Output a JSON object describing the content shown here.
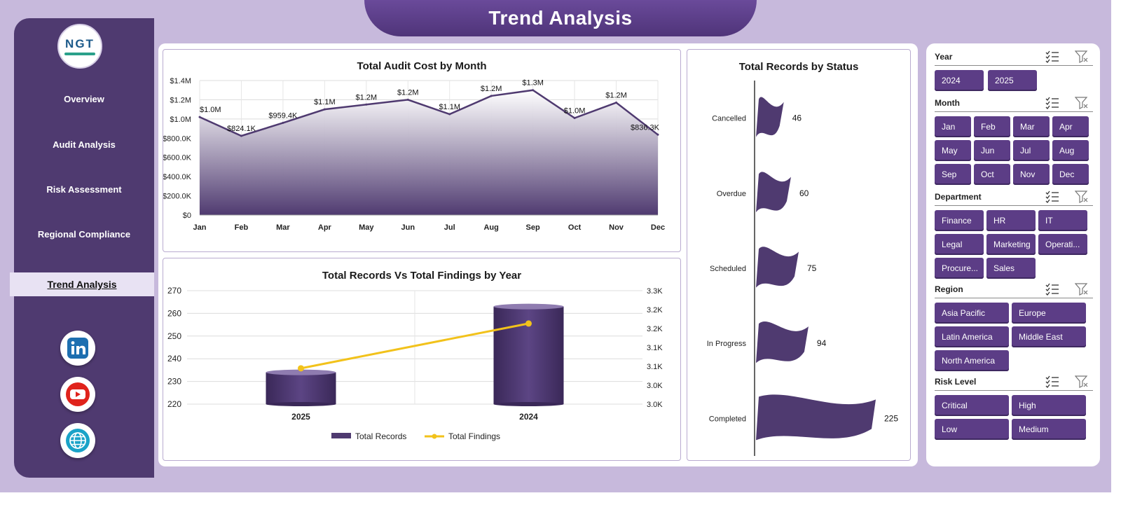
{
  "page": {
    "title": "Trend Analysis"
  },
  "logo": {
    "text": "NGT"
  },
  "nav": {
    "items": [
      {
        "label": "Overview"
      },
      {
        "label": "Audit Analysis"
      },
      {
        "label": "Risk Assessment"
      },
      {
        "label": "Regional Compliance"
      },
      {
        "label": "Trend Analysis"
      }
    ],
    "active_index": 4
  },
  "social": {
    "icons": [
      "linkedin-icon",
      "youtube-icon",
      "globe-icon"
    ]
  },
  "colors": {
    "primary": "#4f3a70",
    "accent_line": "#f2c21b",
    "chip": "#5c3d86",
    "frame": "#c7b9dc"
  },
  "chart_data": [
    {
      "type": "area",
      "title": "Total Audit Cost by Month",
      "categories": [
        "Jan",
        "Feb",
        "Mar",
        "Apr",
        "May",
        "Jun",
        "Jul",
        "Aug",
        "Sep",
        "Oct",
        "Nov",
        "Dec"
      ],
      "values": [
        1020000,
        824100,
        959400,
        1100000,
        1150000,
        1200000,
        1050000,
        1240000,
        1300000,
        1010000,
        1170000,
        836300
      ],
      "data_labels": [
        "$1.0M",
        "$824.1K",
        "$959.4K",
        "$1.1M",
        "$1.2M",
        "$1.2M",
        "$1.1M",
        "$1.2M",
        "$1.3M",
        "$1.0M",
        "$1.2M",
        "$836.3K"
      ],
      "ylim": [
        0,
        1400000
      ],
      "yticks": [
        "$0",
        "$200.0K",
        "$400.0K",
        "$600.0K",
        "$800.0K",
        "$1.0M",
        "$1.2M",
        "$1.4M"
      ],
      "grid": true
    },
    {
      "type": "bar",
      "title": "Total Records Vs Total Findings by Year",
      "categories": [
        "2025",
        "2024"
      ],
      "series": [
        {
          "name": "Total Records",
          "values": [
            234,
            263
          ],
          "axis": "left"
        },
        {
          "name": "Total Findings",
          "values": [
            3070,
            3220
          ],
          "axis": "right"
        }
      ],
      "ylim_left": [
        220,
        270
      ],
      "yticks_left": [
        "220",
        "230",
        "240",
        "250",
        "260",
        "270"
      ],
      "ylim_right": [
        2950,
        3330
      ],
      "yticks_right": [
        "3.0K",
        "3.0K",
        "3.1K",
        "3.1K",
        "3.2K",
        "3.2K",
        "3.3K"
      ],
      "legend": "bottom"
    },
    {
      "type": "bar",
      "orientation": "horizontal",
      "title": "Total Records by Status",
      "categories": [
        "Cancelled",
        "Overdue",
        "Scheduled",
        "In Progress",
        "Completed"
      ],
      "values": [
        46,
        60,
        75,
        94,
        225
      ],
      "data_labels": [
        "46",
        "60",
        "75",
        "94",
        "225"
      ]
    }
  ],
  "filters": [
    {
      "label": "Year",
      "options": [
        "2024",
        "2025"
      ]
    },
    {
      "label": "Month",
      "options": [
        "Jan",
        "Feb",
        "Mar",
        "Apr",
        "May",
        "Jun",
        "Jul",
        "Aug",
        "Sep",
        "Oct",
        "Nov",
        "Dec"
      ]
    },
    {
      "label": "Department",
      "options": [
        "Finance",
        "HR",
        "IT",
        "Legal",
        "Marketing",
        "Operati...",
        "Procure...",
        "Sales"
      ]
    },
    {
      "label": "Region",
      "options": [
        "Asia Pacific",
        "Europe",
        "Latin America",
        "Middle East",
        "North America"
      ]
    },
    {
      "label": "Risk Level",
      "options": [
        "Critical",
        "High",
        "Low",
        "Medium"
      ]
    }
  ]
}
